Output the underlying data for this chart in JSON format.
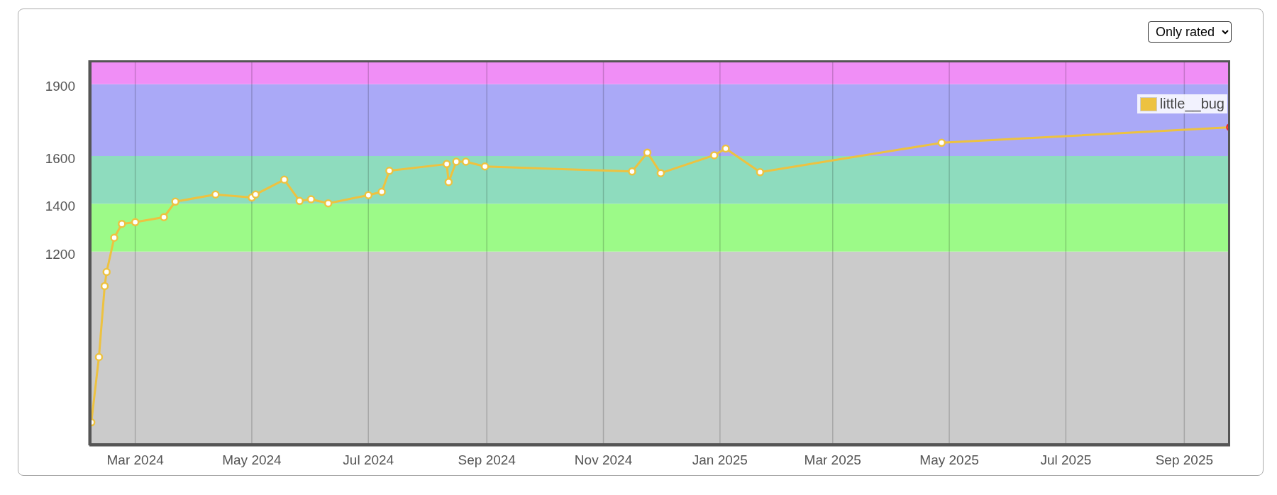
{
  "chart_data": {
    "type": "line",
    "x": [
      "2024-02-07",
      "2024-02-11",
      "2024-02-14",
      "2024-02-15",
      "2024-02-19",
      "2024-02-23",
      "2024-03-01",
      "2024-03-16",
      "2024-03-22",
      "2024-04-12",
      "2024-05-01",
      "2024-05-03",
      "2024-05-18",
      "2024-05-26",
      "2024-06-01",
      "2024-06-10",
      "2024-07-01",
      "2024-07-08",
      "2024-07-12",
      "2024-08-11",
      "2024-08-12",
      "2024-08-16",
      "2024-08-21",
      "2024-08-31",
      "2024-11-16",
      "2024-11-24",
      "2024-12-01",
      "2024-12-29",
      "2025-01-04",
      "2025-01-22",
      "2025-04-27",
      "2025-09-25"
    ],
    "series": [
      {
        "name": "little__bug",
        "color": "#edc240",
        "values": [
          486,
          759,
          1056,
          1115,
          1258,
          1316,
          1323,
          1344,
          1409,
          1439,
          1426,
          1439,
          1501,
          1412,
          1419,
          1402,
          1436,
          1450,
          1538,
          1566,
          1491,
          1576,
          1576,
          1556,
          1535,
          1614,
          1528,
          1603,
          1631,
          1532,
          1655,
          1720
        ],
        "colors": [
          "#edc240",
          "#edc240",
          "#edc240",
          "#edc240",
          "#edc240",
          "#edc240",
          "#edc240",
          "#edc240",
          "#edc240",
          "#edc240",
          "#edc240",
          "#edc240",
          "#edc240",
          "#edc240",
          "#edc240",
          "#edc240",
          "#edc240",
          "#edc240",
          "#edc240",
          "#edc240",
          "#edc240",
          "#edc240",
          "#edc240",
          "#edc240",
          "#edc240",
          "#edc240",
          "#edc240",
          "#edc240",
          "#edc240",
          "#edc240",
          "#edc240",
          "#ee2222"
        ]
      }
    ],
    "xlim": [
      "2024-02-06",
      "2025-09-25"
    ],
    "xticks": [
      {
        "value": "2024-03-01",
        "label": "Mar 2024"
      },
      {
        "value": "2024-05-01",
        "label": "May 2024"
      },
      {
        "value": "2024-07-01",
        "label": "Jul 2024"
      },
      {
        "value": "2024-09-01",
        "label": "Sep 2024"
      },
      {
        "value": "2024-11-01",
        "label": "Nov 2024"
      },
      {
        "value": "2025-01-01",
        "label": "Jan 2025"
      },
      {
        "value": "2025-03-01",
        "label": "Mar 2025"
      },
      {
        "value": "2025-05-01",
        "label": "May 2025"
      },
      {
        "value": "2025-07-01",
        "label": "Jul 2025"
      },
      {
        "value": "2025-09-01",
        "label": "Sep 2025"
      }
    ],
    "ylim": [
      390,
      2000
    ],
    "yticks": [
      1200,
      1400,
      1600,
      1900
    ],
    "bands": [
      {
        "axis": "y",
        "from": 390,
        "to": 1200,
        "color": "#cbcbcb"
      },
      {
        "axis": "y",
        "from": 1200,
        "to": 1400,
        "color": "#9cfa88"
      },
      {
        "axis": "y",
        "from": 1400,
        "to": 1600,
        "color": "#8edcbe"
      },
      {
        "axis": "y",
        "from": 1600,
        "to": 1900,
        "color": "#aaa9f7"
      },
      {
        "axis": "y",
        "from": 1900,
        "to": 2000,
        "color": "#f08ef6"
      }
    ],
    "grid": "x",
    "legend": "top right",
    "marker": "circle",
    "line_style": "solid",
    "annotations": [
      "Only rated"
    ]
  }
}
